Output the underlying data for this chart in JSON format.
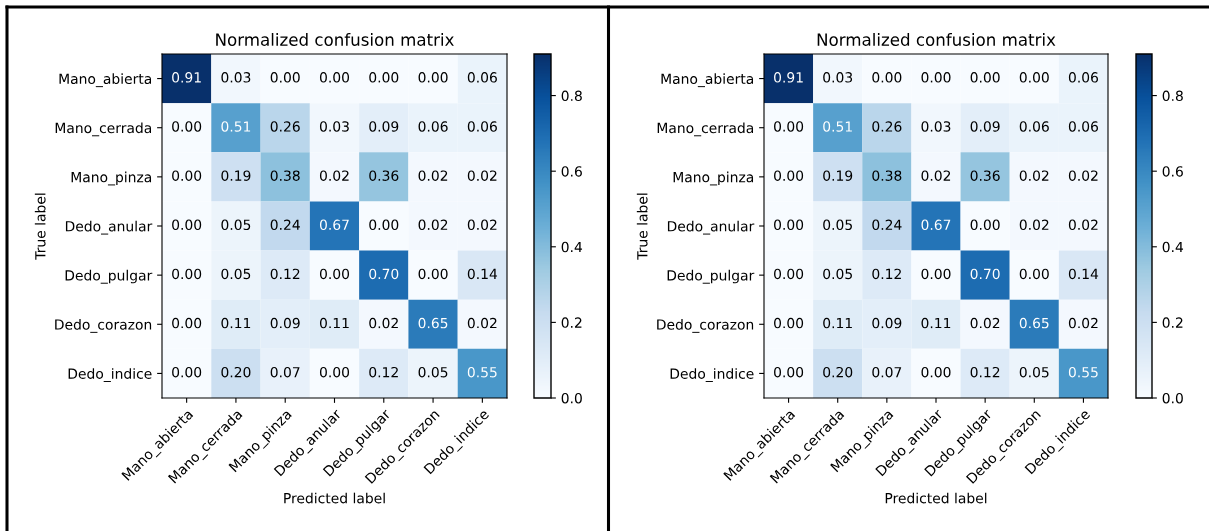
{
  "chart_data": [
    {
      "type": "heatmap",
      "title": "Normalized confusion matrix",
      "xlabel": "Predicted label",
      "ylabel": "True label",
      "categories": [
        "Mano_abierta",
        "Mano_cerrada",
        "Mano_pinza",
        "Dedo_anular",
        "Dedo_pulgar",
        "Dedo_corazon",
        "Dedo_indice"
      ],
      "y_categories": [
        "Mano_abierta",
        "Mano_cerrada",
        "Mano_pinza",
        "Dedo_anular",
        "Dedo_pulgar",
        "Dedo_corazon",
        "Dedo_indice"
      ],
      "cells": [
        [
          0.91,
          0.03,
          0,
          0,
          0,
          0,
          0.06
        ],
        [
          0,
          0.51,
          0.26,
          0.03,
          0.09,
          0.06,
          0.06
        ],
        [
          0,
          0.19,
          0.38,
          0.02,
          0.36,
          0.02,
          0.02
        ],
        [
          0,
          0.05,
          0.24,
          0.67,
          0,
          0.02,
          0.02
        ],
        [
          0,
          0.05,
          0.12,
          0,
          0.7,
          0,
          0.14
        ],
        [
          0,
          0.11,
          0.09,
          0.11,
          0.02,
          0.65,
          0.02
        ],
        [
          0,
          0.2,
          0.07,
          0,
          0.12,
          0.05,
          0.55
        ]
      ],
      "cell_labels": [
        [
          "0.91",
          "0.03",
          "0.00",
          "0.00",
          "0.00",
          "0.00",
          "0.06"
        ],
        [
          "0.00",
          "0.51",
          "0.26",
          "0.03",
          "0.09",
          "0.06",
          "0.06"
        ],
        [
          "0.00",
          "0.19",
          "0.38",
          "0.02",
          "0.36",
          "0.02",
          "0.02"
        ],
        [
          "0.00",
          "0.05",
          "0.24",
          "0.67",
          "0.00",
          "0.02",
          "0.02"
        ],
        [
          "0.00",
          "0.05",
          "0.12",
          "0.00",
          "0.70",
          "0.00",
          "0.14"
        ],
        [
          "0.00",
          "0.11",
          "0.09",
          "0.11",
          "0.02",
          "0.65",
          "0.02"
        ],
        [
          "0.00",
          "0.20",
          "0.07",
          "0.00",
          "0.12",
          "0.05",
          "0.55"
        ]
      ],
      "clim": [
        0,
        0.91
      ],
      "cticks": [
        {
          "value": 0,
          "label": "0.0"
        },
        {
          "value": 0.2,
          "label": "0.2"
        },
        {
          "value": 0.4,
          "label": "0.4"
        },
        {
          "value": 0.6,
          "label": "0.6"
        },
        {
          "value": 0.8,
          "label": "0.8"
        }
      ]
    },
    {
      "type": "heatmap",
      "title": "Normalized confusion matrix",
      "xlabel": "Predicted label",
      "ylabel": "True label",
      "categories": [
        "Mano_abierta",
        "Mano_cerrada",
        "Mano_pinza",
        "Dedo_anular",
        "Dedo_pulgar",
        "Dedo_corazon",
        "Dedo_indice"
      ],
      "y_categories": [
        "Mano_abierta",
        "Mano_cerrada",
        "Mano_pinza",
        "Dedo_anular",
        "Dedo_pulgar",
        "Dedo_corazon",
        "Dedo_indice"
      ],
      "cells": [
        [
          0.91,
          0.03,
          0,
          0,
          0,
          0,
          0.06
        ],
        [
          0,
          0.51,
          0.26,
          0.03,
          0.09,
          0.06,
          0.06
        ],
        [
          0,
          0.19,
          0.38,
          0.02,
          0.36,
          0.02,
          0.02
        ],
        [
          0,
          0.05,
          0.24,
          0.67,
          0,
          0.02,
          0.02
        ],
        [
          0,
          0.05,
          0.12,
          0,
          0.7,
          0,
          0.14
        ],
        [
          0,
          0.11,
          0.09,
          0.11,
          0.02,
          0.65,
          0.02
        ],
        [
          0,
          0.2,
          0.07,
          0,
          0.12,
          0.05,
          0.55
        ]
      ],
      "cell_labels": [
        [
          "0.91",
          "0.03",
          "0.00",
          "0.00",
          "0.00",
          "0.00",
          "0.06"
        ],
        [
          "0.00",
          "0.51",
          "0.26",
          "0.03",
          "0.09",
          "0.06",
          "0.06"
        ],
        [
          "0.00",
          "0.19",
          "0.38",
          "0.02",
          "0.36",
          "0.02",
          "0.02"
        ],
        [
          "0.00",
          "0.05",
          "0.24",
          "0.67",
          "0.00",
          "0.02",
          "0.02"
        ],
        [
          "0.00",
          "0.05",
          "0.12",
          "0.00",
          "0.70",
          "0.00",
          "0.14"
        ],
        [
          "0.00",
          "0.11",
          "0.09",
          "0.11",
          "0.02",
          "0.65",
          "0.02"
        ],
        [
          "0.00",
          "0.20",
          "0.07",
          "0.00",
          "0.12",
          "0.05",
          "0.55"
        ]
      ],
      "clim": [
        0,
        0.91
      ],
      "cticks": [
        {
          "value": 0,
          "label": "0.0"
        },
        {
          "value": 0.2,
          "label": "0.2"
        },
        {
          "value": 0.4,
          "label": "0.4"
        },
        {
          "value": 0.6,
          "label": "0.6"
        },
        {
          "value": 0.8,
          "label": "0.8"
        }
      ]
    }
  ]
}
